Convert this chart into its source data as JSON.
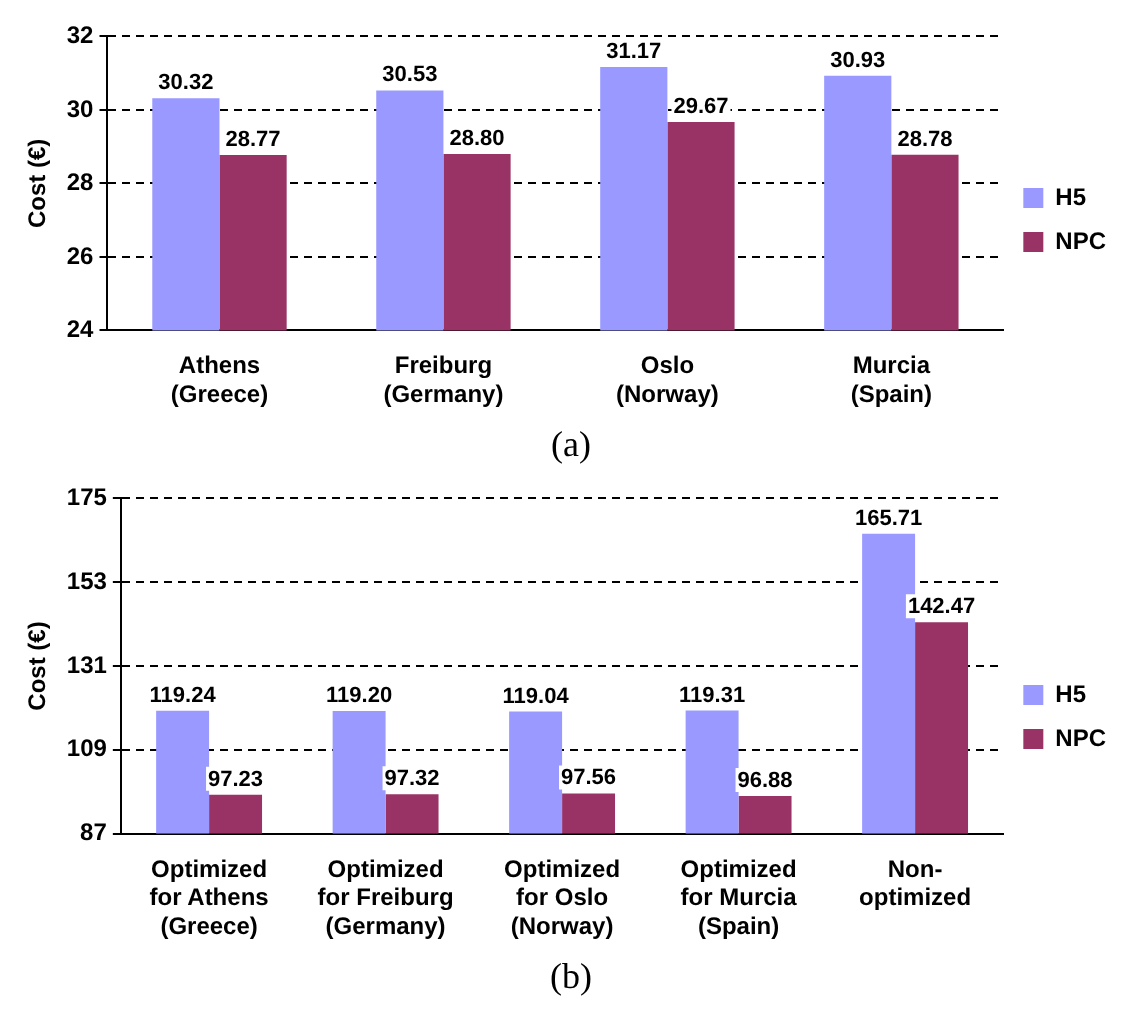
{
  "chart_data": [
    {
      "type": "bar",
      "ylabel": "Cost (€)",
      "categories": [
        "Athens\n(Greece)",
        "Freiburg\n(Germany)",
        "Oslo\n(Norway)",
        "Murcia\n(Spain)"
      ],
      "series": [
        {
          "name": "H5",
          "color": "#9999ff",
          "values": [
            30.32,
            30.53,
            31.17,
            30.93
          ],
          "value_labels": [
            "30.32",
            "30.53",
            "31.17",
            "30.93"
          ]
        },
        {
          "name": "NPC",
          "color": "#993366",
          "values": [
            28.77,
            28.8,
            29.67,
            28.78
          ],
          "value_labels": [
            "28.77",
            "28.80",
            "29.67",
            "28.78"
          ]
        }
      ],
      "ylim": [
        24,
        32
      ],
      "yticks": [
        24,
        26,
        28,
        30,
        32
      ],
      "grid": "y",
      "line_style": "dashed",
      "legend": "right",
      "annotations": [
        "(a)"
      ]
    },
    {
      "type": "bar",
      "ylabel": "Cost (€)",
      "categories": [
        "Optimized\nfor Athens\n(Greece)",
        "Optimized\nfor Freiburg\n(Germany)",
        "Optimized\nfor Oslo\n(Norway)",
        "Optimized\nfor Murcia\n(Spain)",
        "Non-\noptimized"
      ],
      "series": [
        {
          "name": "H5",
          "color": "#9999ff",
          "values": [
            119.24,
            119.2,
            119.04,
            119.31,
            165.71
          ],
          "value_labels": [
            "119.24",
            "119.20",
            "119.04",
            "119.31",
            "165.71"
          ]
        },
        {
          "name": "NPC",
          "color": "#993366",
          "values": [
            97.23,
            97.32,
            97.56,
            96.88,
            142.47
          ],
          "value_labels": [
            "97.23",
            "97.32",
            "97.56",
            "96.88",
            "142.47"
          ]
        }
      ],
      "ylim": [
        87,
        175
      ],
      "yticks": [
        87,
        109,
        131,
        153,
        175
      ],
      "grid": "y",
      "line_style": "dashed",
      "legend": "right",
      "annotations": [
        "(b)"
      ]
    }
  ]
}
